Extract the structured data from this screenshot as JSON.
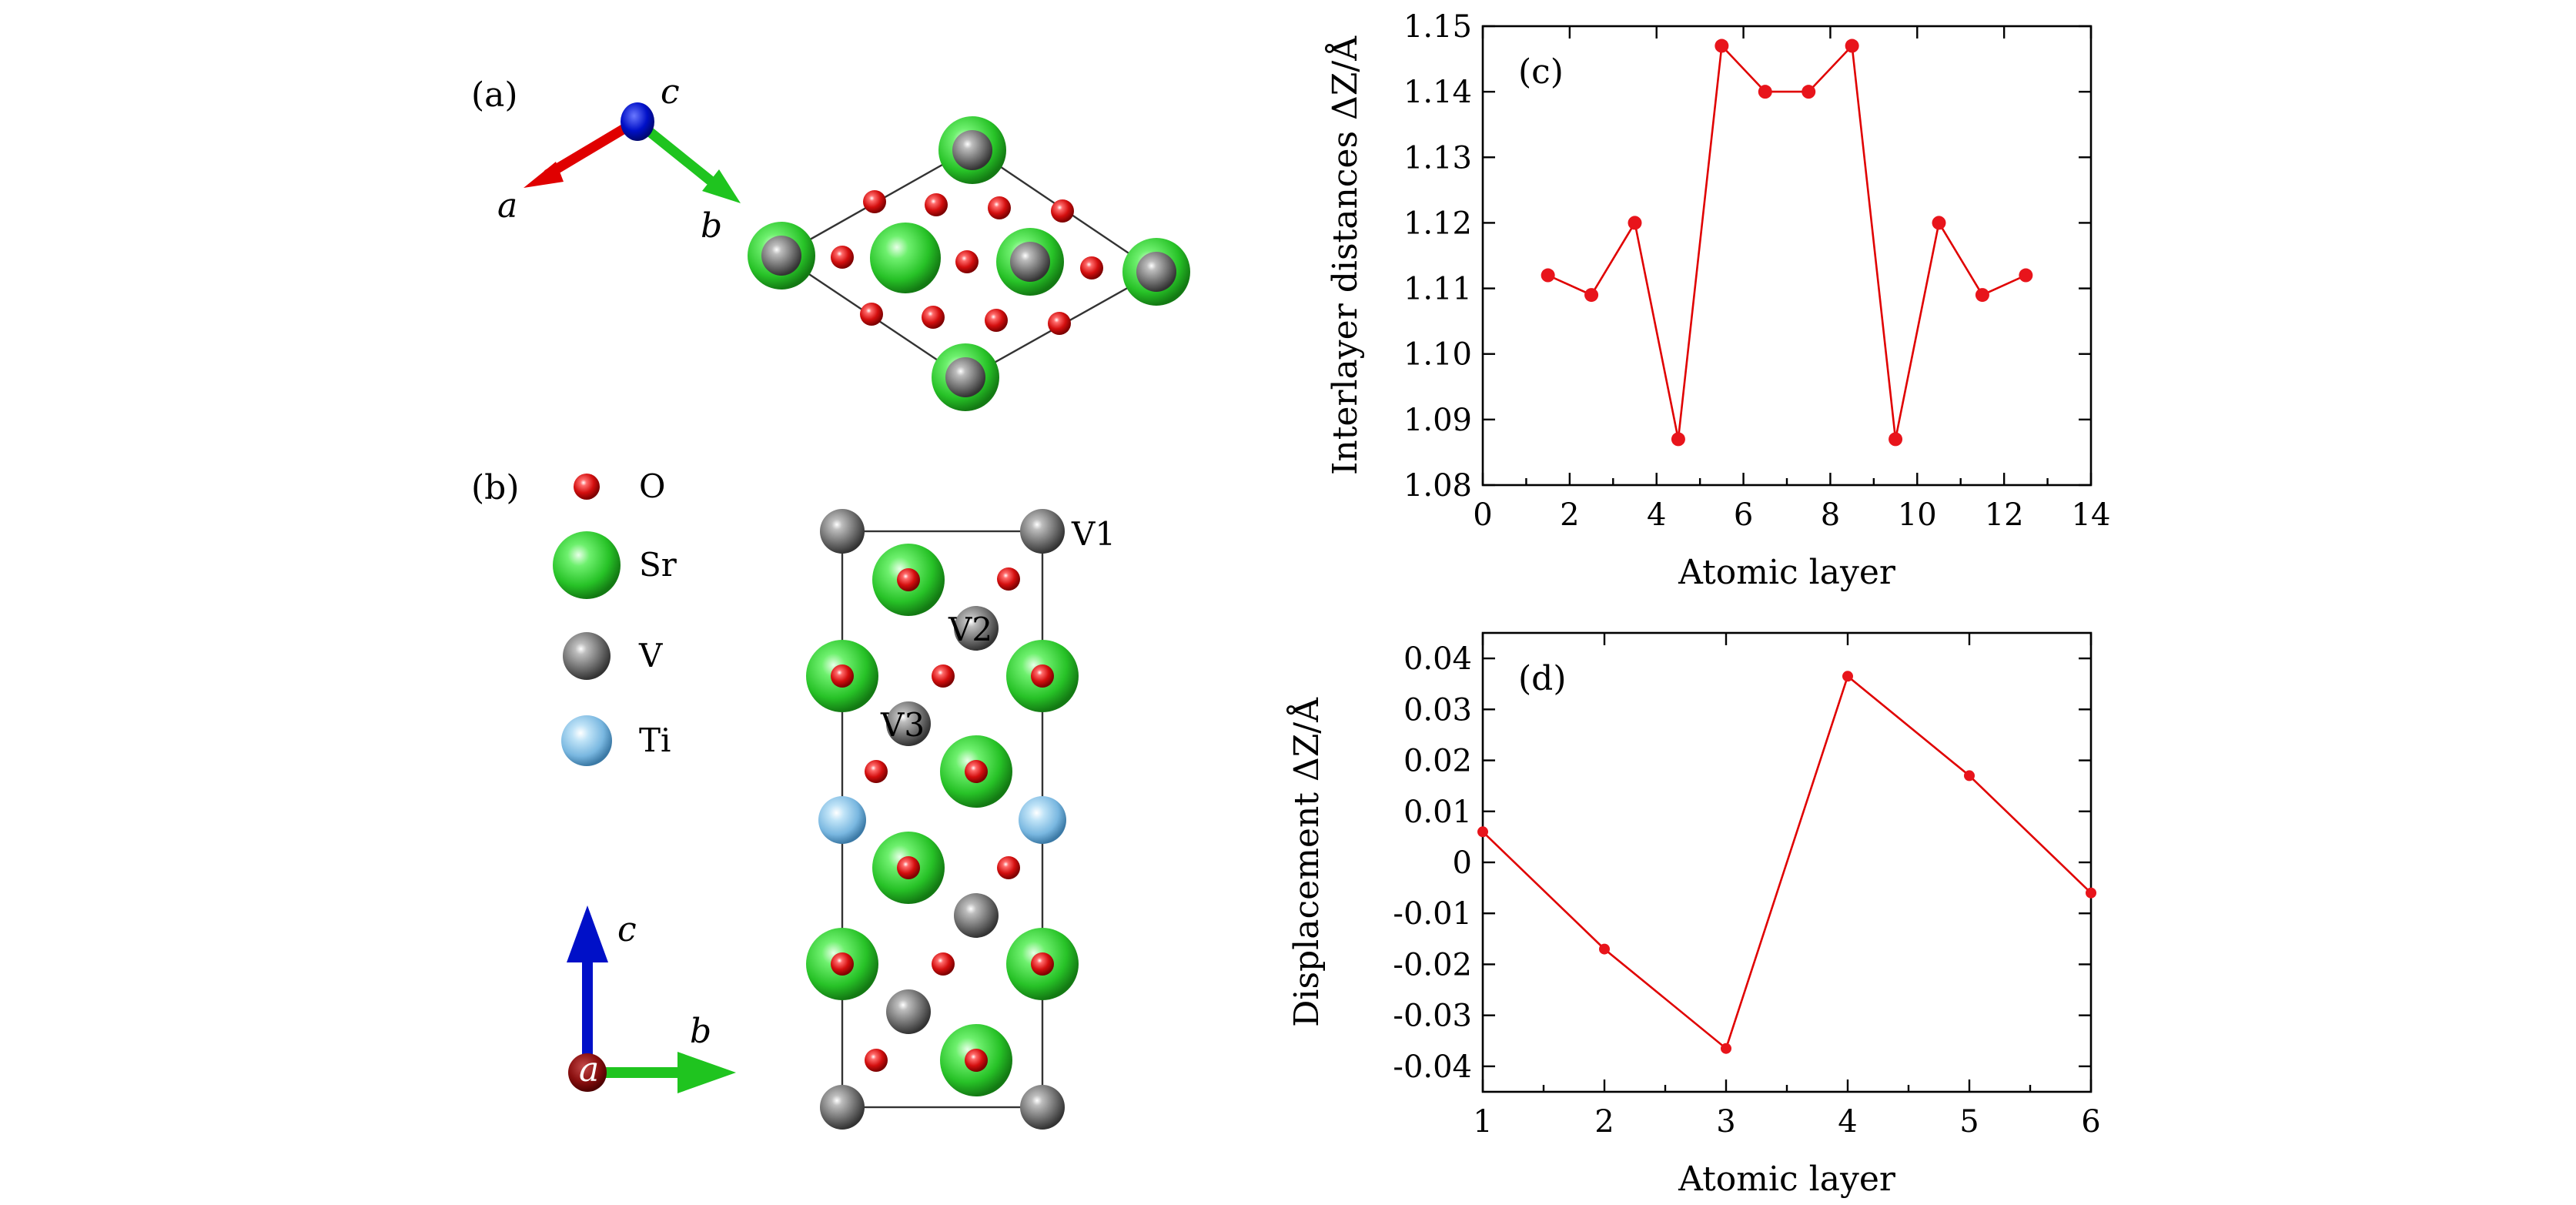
{
  "panel_labels": {
    "a": "(a)",
    "b": "(b)",
    "c": "(c)",
    "d": "(d)"
  },
  "axis_letters": {
    "a": "a",
    "b": "b",
    "c": "c"
  },
  "legend": [
    {
      "label": "O",
      "color": "#e01b1b"
    },
    {
      "label": "Sr",
      "color": "#35d435"
    },
    {
      "label": "V",
      "color": "#7d7d7d"
    },
    {
      "label": "Ti",
      "color": "#8ec6ea"
    }
  ],
  "site_labels": {
    "v1": "V1",
    "v2": "V2",
    "v3": "V3"
  },
  "colors": {
    "oxygen": "#e01b1b",
    "strontium": "#35d435",
    "vanadium": "#7d7d7d",
    "titanium": "#8ec6ea",
    "axis_a": "#e00000",
    "axis_b": "#1fc41f",
    "axis_c": "#0010c8",
    "series": "#e00000"
  },
  "chart_data": [
    {
      "type": "line",
      "panel": "(c)",
      "xlabel": "Atomic layer",
      "ylabel": "Interlayer distances ΔZ/Å",
      "xlim": [
        0,
        14
      ],
      "ylim": [
        1.08,
        1.15
      ],
      "xticks": [
        "0",
        "2",
        "4",
        "6",
        "8",
        "10",
        "12",
        "14"
      ],
      "yticks": [
        "1.08",
        "1.09",
        "1.10",
        "1.11",
        "1.12",
        "1.13",
        "1.14",
        "1.15"
      ],
      "x": [
        1.5,
        2.5,
        3.5,
        4.5,
        5.5,
        6.5,
        7.5,
        8.5,
        9.5,
        10.5,
        11.5,
        12.5
      ],
      "y": [
        1.112,
        1.109,
        1.12,
        1.087,
        1.147,
        1.14,
        1.14,
        1.147,
        1.087,
        1.12,
        1.109,
        1.112
      ]
    },
    {
      "type": "line",
      "panel": "(d)",
      "xlabel": "Atomic layer",
      "ylabel": "Displacement ΔZ/Å",
      "xlim": [
        1,
        6
      ],
      "ylim": [
        -0.045,
        0.045
      ],
      "xticks": [
        "1",
        "2",
        "3",
        "4",
        "5",
        "6"
      ],
      "yticks": [
        "0.04",
        "0.03",
        "0.02",
        "0.01",
        "0",
        "-0.01",
        "-0.02",
        "-0.03",
        "-0.04"
      ],
      "x": [
        1,
        2,
        3,
        4,
        5,
        6
      ],
      "y": [
        0.006,
        -0.017,
        -0.0365,
        0.0365,
        0.017,
        -0.006
      ]
    }
  ]
}
